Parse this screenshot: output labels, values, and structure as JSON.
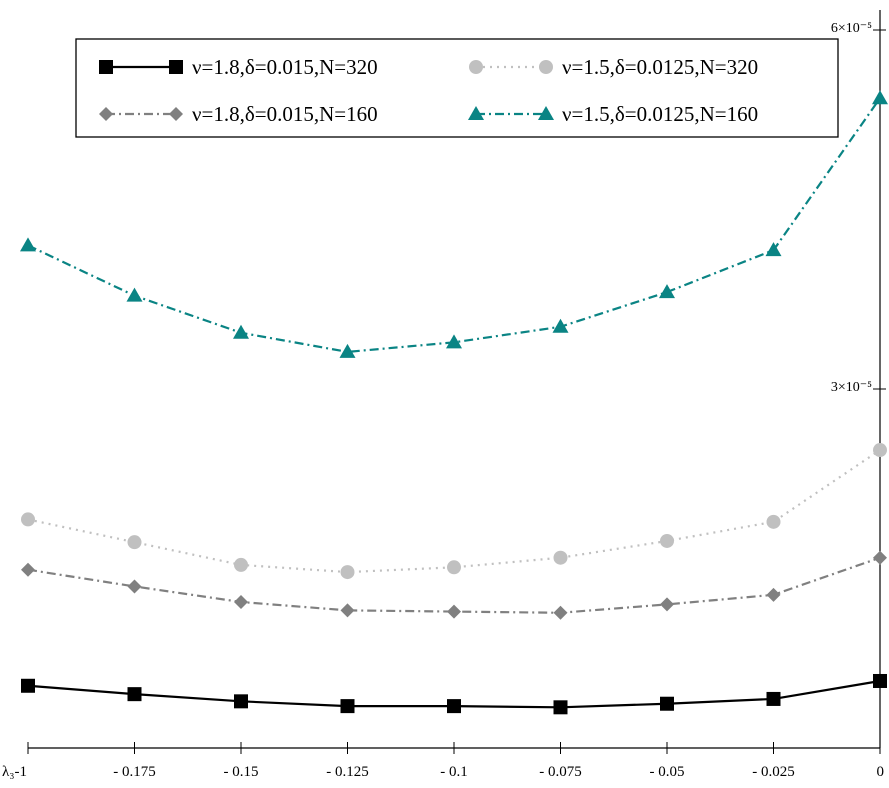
{
  "chart_data": {
    "type": "line",
    "x": [
      -0.2,
      -0.175,
      -0.15,
      -0.125,
      -0.1,
      -0.075,
      -0.05,
      -0.025,
      0
    ],
    "x_tick_labels": [
      "λ₃-1",
      "- 0.175",
      "- 0.15",
      "- 0.125",
      "- 0.1",
      "- 0.075",
      "- 0.05",
      "- 0.025",
      "0"
    ],
    "y_tick_labels": [
      {
        "value": 3e-05,
        "label": "3×10⁻⁵"
      },
      {
        "value": 6e-05,
        "label": "6×10⁻⁵"
      }
    ],
    "xlim": [
      -0.2,
      0
    ],
    "ylim": [
      0,
      6e-05
    ],
    "grid": false,
    "legend_position": "top-left",
    "series": [
      {
        "name": "ν=1.8,δ=0.015,N=320",
        "color": "#000000",
        "marker": "square",
        "dash": "solid",
        "values": [
          5.2e-06,
          4.5e-06,
          3.9e-06,
          3.5e-06,
          3.5e-06,
          3.4e-06,
          3.7e-06,
          4.1e-06,
          5.6e-06
        ]
      },
      {
        "name": "ν=1.5,δ=0.0125,N=320",
        "color": "#c0c0c0",
        "marker": "circle",
        "dash": "dot",
        "values": [
          1.91e-05,
          1.72e-05,
          1.53e-05,
          1.47e-05,
          1.51e-05,
          1.59e-05,
          1.73e-05,
          1.89e-05,
          2.49e-05
        ]
      },
      {
        "name": "ν=1.8,δ=0.015,N=160",
        "color": "#808080",
        "marker": "diamond",
        "dash": "dashdot",
        "values": [
          1.49e-05,
          1.35e-05,
          1.22e-05,
          1.15e-05,
          1.14e-05,
          1.13e-05,
          1.2e-05,
          1.28e-05,
          1.59e-05
        ]
      },
      {
        "name": "ν=1.5,δ=0.0125,N=160",
        "color": "#0a8484",
        "marker": "triangle",
        "dash": "dashdot",
        "values": [
          4.2e-05,
          3.78e-05,
          3.47e-05,
          3.31e-05,
          3.39e-05,
          3.52e-05,
          3.81e-05,
          4.16e-05,
          5.43e-05
        ]
      }
    ]
  }
}
